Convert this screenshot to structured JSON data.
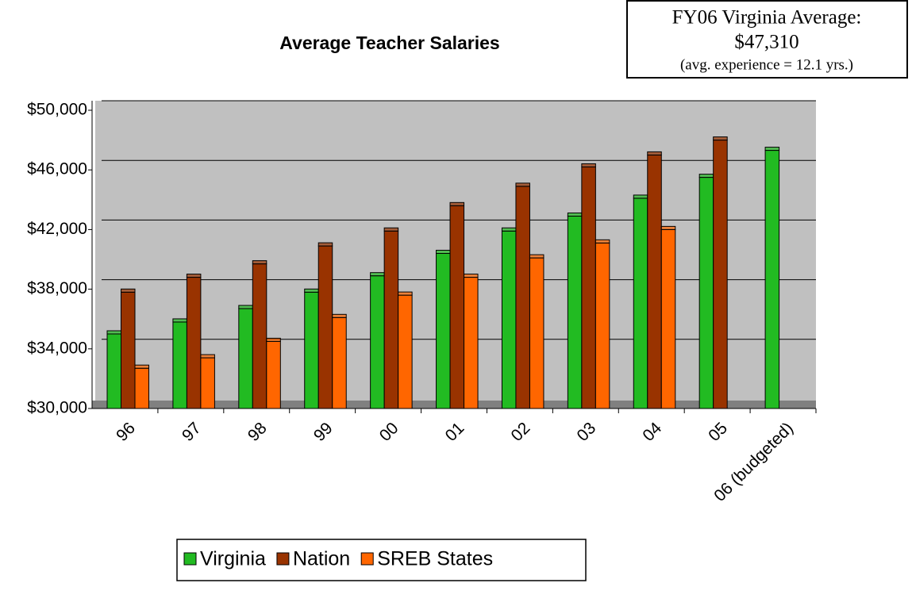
{
  "chart_data": {
    "type": "bar",
    "title": "Average Teacher Salaries",
    "annotation": [
      "FY06 Virginia Average:",
      "$47,310",
      "(avg. experience = 12.1 yrs.)"
    ],
    "categories": [
      "96",
      "97",
      "98",
      "99",
      "00",
      "01",
      "02",
      "03",
      "04",
      "05",
      "06 (budgeted)"
    ],
    "series": [
      {
        "name": "Virginia",
        "color": "#22bb22",
        "values": [
          35000,
          35800,
          36700,
          37800,
          38900,
          40400,
          41900,
          42900,
          44100,
          45500,
          47310
        ]
      },
      {
        "name": "Nation",
        "color": "#993300",
        "values": [
          37800,
          38800,
          39700,
          40900,
          41900,
          43600,
          44900,
          46200,
          47000,
          48000,
          null
        ]
      },
      {
        "name": "SREB States",
        "color": "#ff6600",
        "values": [
          32700,
          33400,
          34500,
          36100,
          37600,
          38800,
          40100,
          41100,
          42000,
          null,
          null
        ]
      }
    ],
    "ylim": [
      30000,
      50000
    ],
    "yticks": [
      {
        "value": 30000,
        "label": "$30,000"
      },
      {
        "value": 34000,
        "label": "$34,000"
      },
      {
        "value": 38000,
        "label": "$38,000"
      },
      {
        "value": 42000,
        "label": "$42,000"
      },
      {
        "value": 46000,
        "label": "$46,000"
      },
      {
        "value": 50000,
        "label": "$50,000"
      }
    ],
    "grid": true,
    "legend": "bottom"
  }
}
